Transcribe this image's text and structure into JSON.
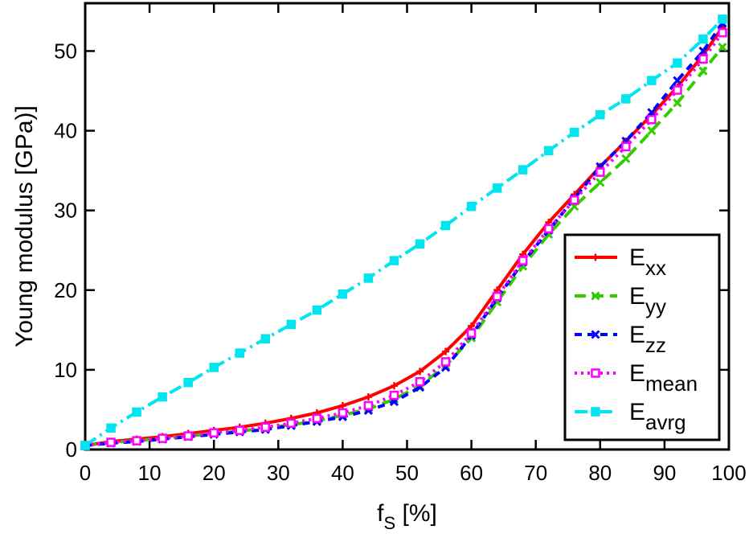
{
  "chart_data": {
    "type": "line",
    "xlabel": {
      "main": "f",
      "sub": "S",
      "suffix": " [%]"
    },
    "ylabel": "Young modulus [GPa)]",
    "xlim": [
      0,
      100
    ],
    "ylim": [
      0,
      56
    ],
    "x_ticks": [
      "0",
      "10",
      "20",
      "30",
      "40",
      "50",
      "60",
      "70",
      "80",
      "90",
      "100"
    ],
    "y_ticks": [
      "0",
      "10",
      "20",
      "30",
      "40",
      "50"
    ],
    "legend_position": "lower-right",
    "grid": false,
    "series": [
      {
        "name": {
          "main": "E",
          "sub": "xx"
        },
        "color": "#ff0000",
        "dash": "",
        "marker": "plus",
        "x": [
          0,
          4,
          8,
          12,
          16,
          20,
          24,
          28,
          32,
          36,
          40,
          44,
          48,
          52,
          56,
          60,
          64,
          68,
          72,
          76,
          80,
          84,
          88,
          92,
          96,
          99
        ],
        "y": [
          0.5,
          1.0,
          1.3,
          1.6,
          2.0,
          2.4,
          2.8,
          3.3,
          3.9,
          4.6,
          5.5,
          6.6,
          8.0,
          9.8,
          12.3,
          15.5,
          20.0,
          24.5,
          28.5,
          32.0,
          35.5,
          38.7,
          42.0,
          45.5,
          49.5,
          53.0
        ]
      },
      {
        "name": {
          "main": "E",
          "sub": "yy"
        },
        "color": "#33cc00",
        "dash": "14 8",
        "marker": "x",
        "x": [
          0,
          4,
          8,
          12,
          16,
          20,
          24,
          28,
          32,
          36,
          40,
          44,
          48,
          52,
          56,
          60,
          64,
          68,
          72,
          76,
          80,
          84,
          88,
          92,
          96,
          99
        ],
        "y": [
          0.5,
          0.9,
          1.1,
          1.4,
          1.7,
          2.0,
          2.3,
          2.7,
          3.1,
          3.6,
          4.3,
          5.1,
          6.3,
          8.0,
          10.5,
          14.0,
          18.5,
          23.0,
          27.0,
          30.5,
          33.5,
          36.5,
          40.0,
          43.5,
          47.5,
          50.5
        ]
      },
      {
        "name": {
          "main": "E",
          "sub": "zz"
        },
        "color": "#0000ff",
        "dash": "9 7",
        "marker": "x",
        "x": [
          0,
          4,
          8,
          12,
          16,
          20,
          24,
          28,
          32,
          36,
          40,
          44,
          48,
          52,
          56,
          60,
          64,
          68,
          72,
          76,
          80,
          84,
          88,
          92,
          96,
          99
        ],
        "y": [
          0.5,
          0.8,
          1.0,
          1.3,
          1.6,
          1.9,
          2.2,
          2.5,
          3.0,
          3.5,
          4.1,
          4.9,
          6.0,
          7.8,
          10.3,
          14.3,
          19.0,
          23.5,
          27.5,
          31.5,
          35.5,
          38.7,
          42.3,
          46.3,
          50.0,
          53.5
        ]
      },
      {
        "name": {
          "main": "E",
          "sub": "mean"
        },
        "color": "#ff00ff",
        "dash": "3 5",
        "marker": "square",
        "x": [
          0,
          4,
          8,
          12,
          16,
          20,
          24,
          28,
          32,
          36,
          40,
          44,
          48,
          52,
          56,
          60,
          64,
          68,
          72,
          76,
          80,
          84,
          88,
          92,
          96,
          99
        ],
        "y": [
          0.5,
          0.9,
          1.1,
          1.4,
          1.7,
          2.1,
          2.4,
          2.8,
          3.3,
          3.9,
          4.6,
          5.5,
          6.8,
          8.5,
          11.0,
          14.6,
          19.2,
          23.7,
          27.7,
          31.3,
          34.8,
          38.0,
          41.4,
          45.1,
          49.0,
          52.3
        ]
      },
      {
        "name": {
          "main": "E",
          "sub": "avrg"
        },
        "color": "#00e5ee",
        "dash": "16 6 3 6",
        "marker": "square",
        "x": [
          0,
          4,
          8,
          12,
          16,
          20,
          24,
          28,
          32,
          36,
          40,
          44,
          48,
          52,
          56,
          60,
          64,
          68,
          72,
          76,
          80,
          84,
          88,
          92,
          96,
          99
        ],
        "y": [
          0.5,
          2.7,
          4.7,
          6.6,
          8.4,
          10.3,
          12.1,
          13.9,
          15.7,
          17.5,
          19.5,
          21.5,
          23.7,
          25.8,
          28.1,
          30.5,
          32.8,
          35.1,
          37.5,
          39.8,
          42.0,
          44.0,
          46.3,
          48.5,
          51.5,
          54.0
        ]
      }
    ]
  }
}
